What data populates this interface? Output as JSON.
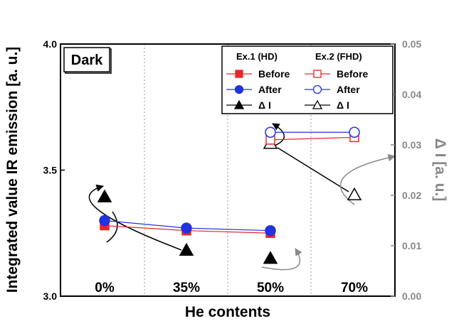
{
  "chart_data": {
    "type": "line",
    "title": "",
    "xlabel": "He contents",
    "ylabel_left": "Integrated value IR emission [a. u.]",
    "ylabel_right": "Δ I [a. u.]",
    "categories": [
      "0%",
      "35%",
      "50%",
      "70%"
    ],
    "ylim_left": [
      3.0,
      4.0
    ],
    "ylim_right": [
      0.0,
      0.05
    ],
    "yticks_left": [
      "3.0",
      "3.5",
      "4.0"
    ],
    "yticks_right": [
      "0.00",
      "0.01",
      "0.02",
      "0.03",
      "0.04",
      "0.05"
    ],
    "grid": "vertical dotted lines between categories",
    "legend_position": "top-right",
    "annotation": "Dark",
    "legend_headers": [
      "Ex.1 (HD)",
      "Ex.2 (FHD)"
    ],
    "series": [
      {
        "name": "Before",
        "group": "Ex.1 (HD)",
        "axis": "left",
        "marker": "square-filled",
        "color": "#e8262a",
        "points": [
          [
            "0%",
            3.28
          ],
          [
            "35%",
            3.26
          ],
          [
            "50%",
            3.25
          ]
        ]
      },
      {
        "name": "After",
        "group": "Ex.1 (HD)",
        "axis": "left",
        "marker": "circle-filled",
        "color": "#2233dd",
        "points": [
          [
            "0%",
            3.3
          ],
          [
            "35%",
            3.27
          ],
          [
            "50%",
            3.26
          ]
        ]
      },
      {
        "name": "Δ I",
        "group": "Ex.1 (HD)",
        "axis": "right",
        "marker": "triangle-filled",
        "color": "#000000",
        "points": [
          [
            "0%",
            0.0197
          ],
          [
            "35%",
            0.0091
          ],
          [
            "50%",
            0.0075
          ]
        ]
      },
      {
        "name": "Before",
        "group": "Ex.2 (FHD)",
        "axis": "left",
        "marker": "square-open",
        "color": "#e8262a",
        "points": [
          [
            "50%",
            3.62
          ],
          [
            "70%",
            3.63
          ]
        ]
      },
      {
        "name": "After",
        "group": "Ex.2 (FHD)",
        "axis": "left",
        "marker": "circle-open",
        "color": "#2233dd",
        "points": [
          [
            "50%",
            3.65
          ],
          [
            "70%",
            3.65
          ]
        ]
      },
      {
        "name": "Δ I",
        "group": "Ex.2 (FHD)",
        "axis": "right",
        "marker": "triangle-open",
        "color": "#000000",
        "points": [
          [
            "50%",
            0.0303
          ],
          [
            "70%",
            0.0201
          ]
        ]
      }
    ],
    "colors": {
      "axis": "#000000",
      "right_axis": "#888888",
      "grid": "#999999"
    }
  }
}
